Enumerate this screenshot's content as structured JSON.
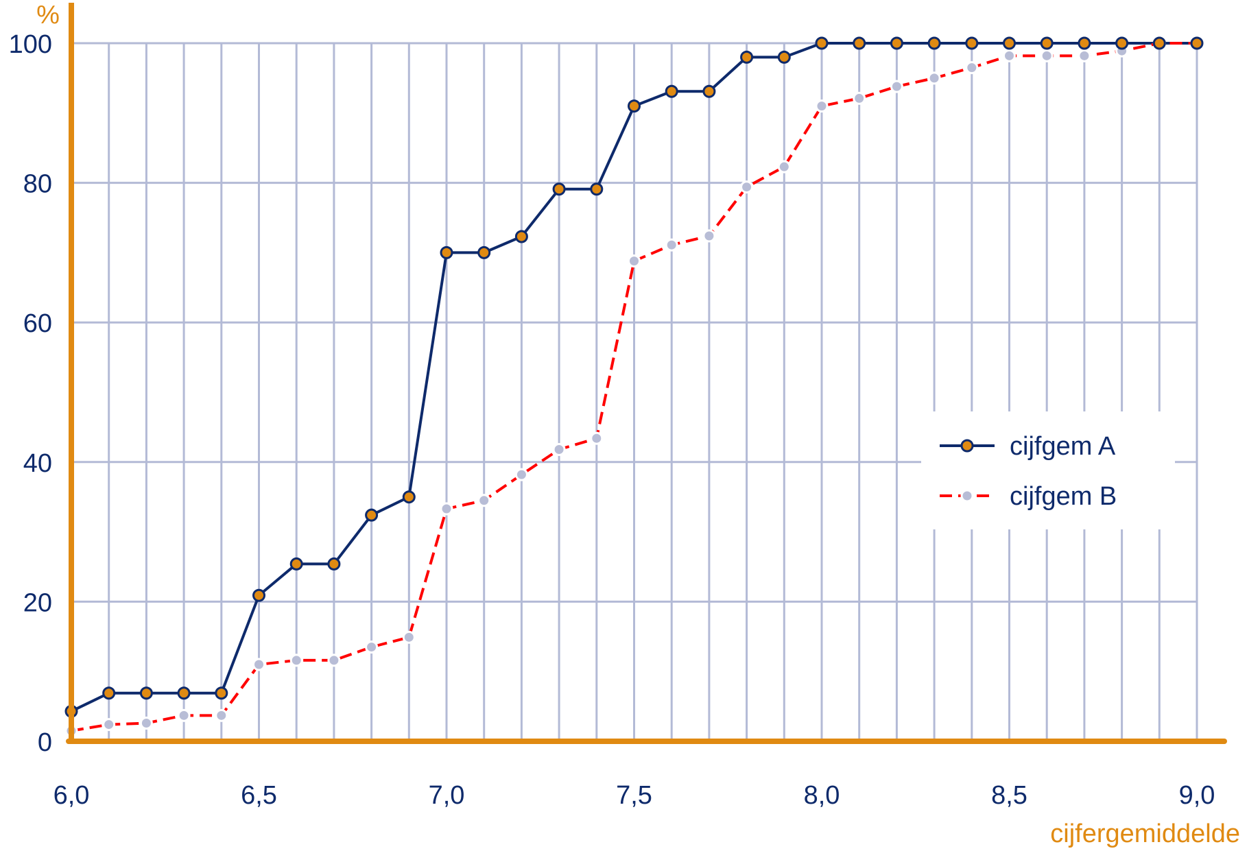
{
  "chart_data": {
    "type": "line",
    "ylabel": "%",
    "xlabel": "cijfergemiddelde",
    "xlim": [
      6.0,
      9.0
    ],
    "ylim": [
      0,
      100
    ],
    "grid": true,
    "legend_position": "right",
    "x": [
      6.0,
      6.1,
      6.2,
      6.3,
      6.4,
      6.5,
      6.6,
      6.7,
      6.8,
      6.9,
      7.0,
      7.1,
      7.2,
      7.3,
      7.4,
      7.5,
      7.6,
      7.7,
      7.8,
      7.9,
      8.0,
      8.1,
      8.2,
      8.3,
      8.4,
      8.5,
      8.6,
      8.7,
      8.8,
      8.9,
      9.0
    ],
    "x_ticks": [
      {
        "value": 6.0,
        "label": "6,0"
      },
      {
        "value": 6.5,
        "label": "6,5"
      },
      {
        "value": 7.0,
        "label": "7,0"
      },
      {
        "value": 7.5,
        "label": "7,5"
      },
      {
        "value": 8.0,
        "label": "8,0"
      },
      {
        "value": 8.5,
        "label": "8,5"
      },
      {
        "value": 9.0,
        "label": "9,0"
      }
    ],
    "y_ticks": [
      {
        "value": 0,
        "label": "0"
      },
      {
        "value": 20,
        "label": "20"
      },
      {
        "value": 40,
        "label": "40"
      },
      {
        "value": 60,
        "label": "60"
      },
      {
        "value": 80,
        "label": "80"
      },
      {
        "value": 100,
        "label": "100"
      }
    ],
    "series": [
      {
        "name": "cijfgem A",
        "values": [
          4.3,
          6.9,
          6.9,
          6.9,
          6.9,
          20.9,
          25.4,
          25.4,
          32.4,
          35.0,
          70.0,
          70.0,
          72.3,
          79.1,
          79.1,
          91.0,
          93.1,
          93.1,
          98.0,
          98.0,
          100,
          100,
          100,
          100,
          100,
          100,
          100,
          100,
          100,
          100,
          100
        ]
      },
      {
        "name": "cijfgem B",
        "values": [
          1.5,
          2.4,
          2.6,
          3.7,
          3.7,
          11.0,
          11.6,
          11.6,
          13.5,
          14.9,
          33.3,
          34.5,
          38.2,
          41.8,
          43.4,
          68.8,
          71.1,
          72.4,
          79.4,
          82.3,
          91.0,
          92.1,
          93.8,
          95.0,
          96.5,
          98.2,
          98.2,
          98.2,
          98.9,
          100,
          100
        ]
      }
    ]
  },
  "colors": {
    "axis": "#e08a12",
    "grid": "#b3bad6",
    "series_a_line": "#0e2a6b",
    "series_a_marker": "#e08a12",
    "series_b_line": "#ff0000",
    "series_b_marker": "#b8bdd6",
    "text": "#0e2a6b"
  }
}
